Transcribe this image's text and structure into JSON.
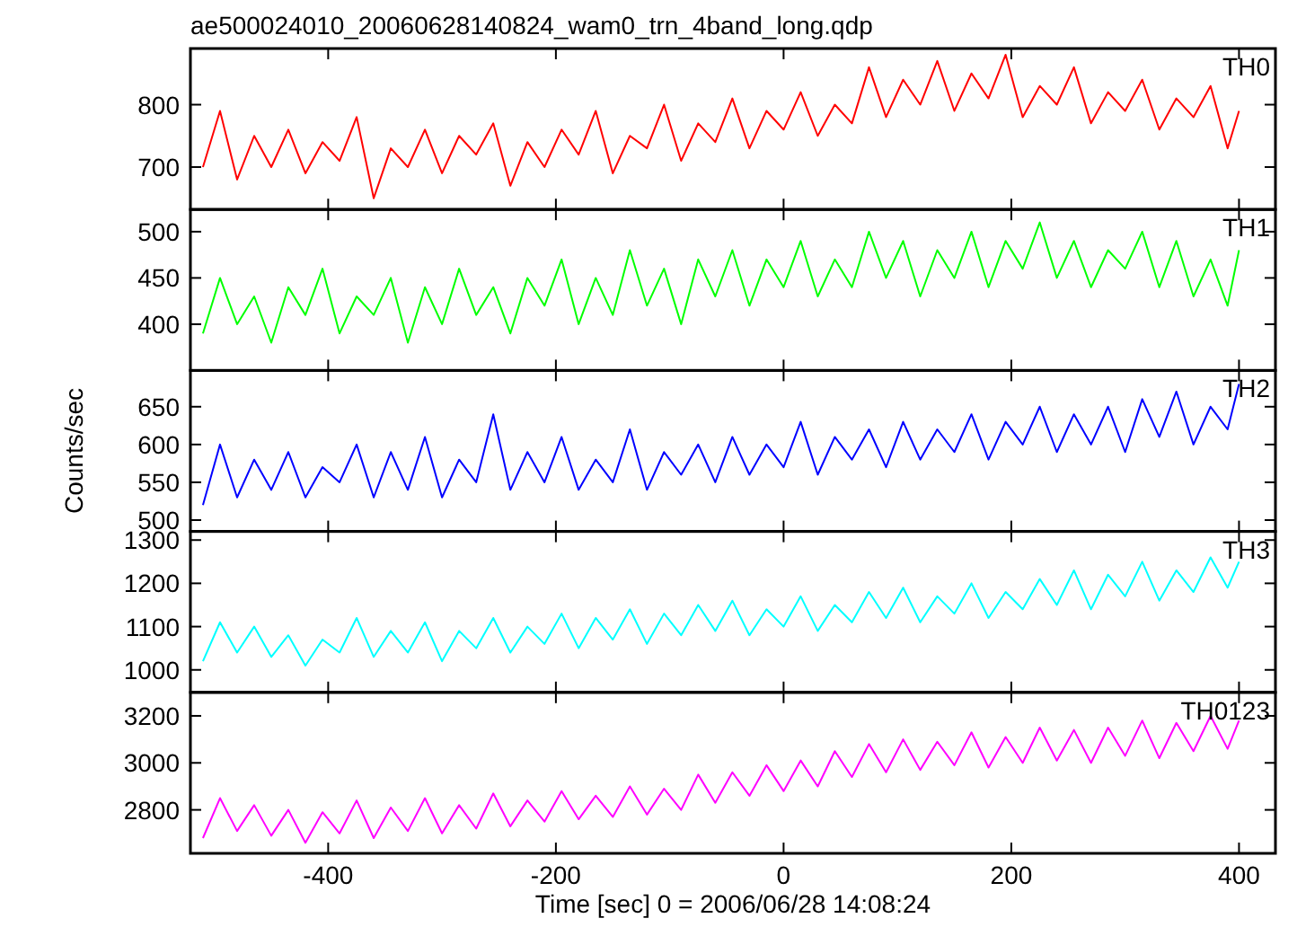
{
  "chart_data": [
    {
      "type": "line",
      "title": "ae500024010_20060628140824_wam0_trn_4band_long.qdp",
      "tick_labels": "y",
      "xlim": [
        -521,
        432
      ],
      "xticks": [
        -400,
        -200,
        0,
        200,
        400
      ],
      "ylim": [
        632,
        890
      ],
      "yticks": [
        700,
        800
      ],
      "x": [
        -510,
        -495,
        -480,
        -465,
        -450,
        -435,
        -420,
        -405,
        -390,
        -375,
        -360,
        -345,
        -330,
        -315,
        -300,
        -285,
        -270,
        -255,
        -240,
        -225,
        -210,
        -195,
        -180,
        -165,
        -150,
        -135,
        -120,
        -105,
        -90,
        -75,
        -60,
        -45,
        -30,
        -15,
        0,
        15,
        30,
        45,
        60,
        75,
        90,
        105,
        120,
        135,
        150,
        165,
        180,
        195,
        210,
        225,
        240,
        255,
        270,
        285,
        300,
        315,
        330,
        345,
        360,
        375,
        390,
        400
      ],
      "series": [
        {
          "name": "TH0",
          "color": "#ff0000",
          "values": [
            700,
            790,
            680,
            750,
            700,
            760,
            690,
            740,
            710,
            780,
            650,
            730,
            700,
            760,
            690,
            750,
            720,
            770,
            670,
            740,
            700,
            760,
            720,
            790,
            690,
            750,
            730,
            800,
            710,
            770,
            740,
            810,
            730,
            790,
            760,
            820,
            750,
            800,
            770,
            860,
            780,
            840,
            800,
            870,
            790,
            850,
            810,
            880,
            780,
            830,
            800,
            860,
            770,
            820,
            790,
            840,
            760,
            810,
            780,
            830,
            730,
            790
          ]
        }
      ]
    },
    {
      "type": "line",
      "tick_labels": "y",
      "xlim": [
        -521,
        432
      ],
      "xticks": [
        -400,
        -200,
        0,
        200,
        400
      ],
      "ylim": [
        350,
        524
      ],
      "yticks": [
        400,
        450,
        500
      ],
      "x": [
        -510,
        -495,
        -480,
        -465,
        -450,
        -435,
        -420,
        -405,
        -390,
        -375,
        -360,
        -345,
        -330,
        -315,
        -300,
        -285,
        -270,
        -255,
        -240,
        -225,
        -210,
        -195,
        -180,
        -165,
        -150,
        -135,
        -120,
        -105,
        -90,
        -75,
        -60,
        -45,
        -30,
        -15,
        0,
        15,
        30,
        45,
        60,
        75,
        90,
        105,
        120,
        135,
        150,
        165,
        180,
        195,
        210,
        225,
        240,
        255,
        270,
        285,
        300,
        315,
        330,
        345,
        360,
        375,
        390,
        400
      ],
      "series": [
        {
          "name": "TH1",
          "color": "#00ff00",
          "values": [
            390,
            450,
            400,
            430,
            380,
            440,
            410,
            460,
            390,
            430,
            410,
            450,
            380,
            440,
            400,
            460,
            410,
            440,
            390,
            450,
            420,
            470,
            400,
            450,
            410,
            480,
            420,
            460,
            400,
            470,
            430,
            480,
            420,
            470,
            440,
            490,
            430,
            470,
            440,
            500,
            450,
            490,
            430,
            480,
            450,
            500,
            440,
            490,
            460,
            510,
            450,
            490,
            440,
            480,
            460,
            500,
            440,
            490,
            430,
            470,
            420,
            480
          ]
        }
      ]
    },
    {
      "type": "line",
      "tick_labels": "y",
      "ylabel": "Counts/sec",
      "xlim": [
        -521,
        432
      ],
      "xticks": [
        -400,
        -200,
        0,
        200,
        400
      ],
      "ylim": [
        485,
        698
      ],
      "yticks": [
        500,
        550,
        600,
        650
      ],
      "x": [
        -510,
        -495,
        -480,
        -465,
        -450,
        -435,
        -420,
        -405,
        -390,
        -375,
        -360,
        -345,
        -330,
        -315,
        -300,
        -285,
        -270,
        -255,
        -240,
        -225,
        -210,
        -195,
        -180,
        -165,
        -150,
        -135,
        -120,
        -105,
        -90,
        -75,
        -60,
        -45,
        -30,
        -15,
        0,
        15,
        30,
        45,
        60,
        75,
        90,
        105,
        120,
        135,
        150,
        165,
        180,
        195,
        210,
        225,
        240,
        255,
        270,
        285,
        300,
        315,
        330,
        345,
        360,
        375,
        390,
        400
      ],
      "series": [
        {
          "name": "TH2",
          "color": "#0000ff",
          "values": [
            520,
            600,
            530,
            580,
            540,
            590,
            530,
            570,
            550,
            600,
            530,
            590,
            540,
            610,
            530,
            580,
            550,
            640,
            540,
            590,
            550,
            610,
            540,
            580,
            550,
            620,
            540,
            590,
            560,
            600,
            550,
            610,
            560,
            600,
            570,
            630,
            560,
            610,
            580,
            620,
            570,
            630,
            580,
            620,
            590,
            640,
            580,
            630,
            600,
            650,
            590,
            640,
            600,
            650,
            590,
            660,
            610,
            670,
            600,
            650,
            620,
            680
          ]
        }
      ]
    },
    {
      "type": "line",
      "tick_labels": "y",
      "xlim": [
        -521,
        432
      ],
      "xticks": [
        -400,
        -200,
        0,
        200,
        400
      ],
      "ylim": [
        948,
        1320
      ],
      "yticks": [
        1000,
        1100,
        1200,
        1300
      ],
      "x": [
        -510,
        -495,
        -480,
        -465,
        -450,
        -435,
        -420,
        -405,
        -390,
        -375,
        -360,
        -345,
        -330,
        -315,
        -300,
        -285,
        -270,
        -255,
        -240,
        -225,
        -210,
        -195,
        -180,
        -165,
        -150,
        -135,
        -120,
        -105,
        -90,
        -75,
        -60,
        -45,
        -30,
        -15,
        0,
        15,
        30,
        45,
        60,
        75,
        90,
        105,
        120,
        135,
        150,
        165,
        180,
        195,
        210,
        225,
        240,
        255,
        270,
        285,
        300,
        315,
        330,
        345,
        360,
        375,
        390,
        400
      ],
      "series": [
        {
          "name": "TH3",
          "color": "#00ffff",
          "values": [
            1020,
            1110,
            1040,
            1100,
            1030,
            1080,
            1010,
            1070,
            1040,
            1120,
            1030,
            1090,
            1040,
            1110,
            1020,
            1090,
            1050,
            1120,
            1040,
            1100,
            1060,
            1130,
            1050,
            1120,
            1070,
            1140,
            1060,
            1130,
            1080,
            1150,
            1090,
            1160,
            1080,
            1140,
            1100,
            1170,
            1090,
            1150,
            1110,
            1180,
            1120,
            1190,
            1110,
            1170,
            1130,
            1200,
            1120,
            1180,
            1140,
            1210,
            1150,
            1230,
            1140,
            1220,
            1170,
            1250,
            1160,
            1230,
            1180,
            1260,
            1190,
            1250
          ]
        }
      ]
    },
    {
      "type": "line",
      "xlabel": "Time [sec] 0 = 2006/06/28 14:08:24",
      "xlim": [
        -521,
        432
      ],
      "xticks": [
        -400,
        -200,
        0,
        200,
        400
      ],
      "ylim": [
        2615,
        3300
      ],
      "yticks": [
        2800,
        3000,
        3200
      ],
      "x": [
        -510,
        -495,
        -480,
        -465,
        -450,
        -435,
        -420,
        -405,
        -390,
        -375,
        -360,
        -345,
        -330,
        -315,
        -300,
        -285,
        -270,
        -255,
        -240,
        -225,
        -210,
        -195,
        -180,
        -165,
        -150,
        -135,
        -120,
        -105,
        -90,
        -75,
        -60,
        -45,
        -30,
        -15,
        0,
        15,
        30,
        45,
        60,
        75,
        90,
        105,
        120,
        135,
        150,
        165,
        180,
        195,
        210,
        225,
        240,
        255,
        270,
        285,
        300,
        315,
        330,
        345,
        360,
        375,
        390,
        400
      ],
      "series": [
        {
          "name": "TH0123",
          "color": "#ff00ff",
          "values": [
            2680,
            2850,
            2710,
            2820,
            2690,
            2800,
            2660,
            2790,
            2700,
            2840,
            2680,
            2810,
            2710,
            2850,
            2700,
            2820,
            2720,
            2870,
            2730,
            2840,
            2750,
            2880,
            2760,
            2860,
            2770,
            2900,
            2780,
            2890,
            2800,
            2950,
            2830,
            2960,
            2860,
            2990,
            2880,
            3010,
            2900,
            3050,
            2940,
            3080,
            2960,
            3100,
            2970,
            3090,
            2990,
            3130,
            2980,
            3110,
            3000,
            3150,
            3010,
            3140,
            3000,
            3150,
            3030,
            3180,
            3020,
            3170,
            3050,
            3200,
            3060,
            3180
          ]
        }
      ]
    }
  ]
}
